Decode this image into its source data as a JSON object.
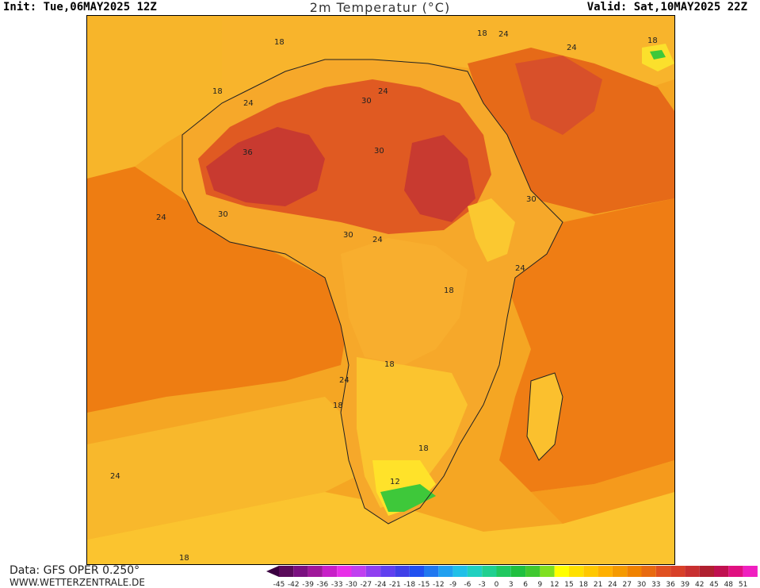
{
  "header": {
    "init": "Init: Tue,06MAY2025 12Z",
    "title": "2m Temperatur (°C)",
    "valid": "Valid: Sat,10MAY2025 22Z"
  },
  "map": {
    "contour_labels": [
      {
        "text": "18"
      },
      {
        "text": "18"
      },
      {
        "text": "24"
      },
      {
        "text": "24"
      },
      {
        "text": "18"
      },
      {
        "text": "18"
      },
      {
        "text": "24"
      },
      {
        "text": "24"
      },
      {
        "text": "30"
      },
      {
        "text": "30"
      },
      {
        "text": "36"
      },
      {
        "text": "24"
      },
      {
        "text": "30"
      },
      {
        "text": "30"
      },
      {
        "text": "24"
      },
      {
        "text": "30"
      },
      {
        "text": "24"
      },
      {
        "text": "18"
      },
      {
        "text": "18"
      },
      {
        "text": "24"
      },
      {
        "text": "18"
      },
      {
        "text": "18"
      },
      {
        "text": "12"
      },
      {
        "text": "24"
      },
      {
        "text": "18"
      }
    ]
  },
  "legend": {
    "ticks": [
      "-45",
      "-42",
      "-39",
      "-36",
      "-33",
      "-30",
      "-27",
      "-24",
      "-21",
      "-18",
      "-15",
      "-12",
      "-9",
      "-6",
      "-3",
      "0",
      "3",
      "6",
      "9",
      "12",
      "15",
      "18",
      "21",
      "24",
      "27",
      "30",
      "33",
      "36",
      "39",
      "42",
      "45",
      "48",
      "51"
    ],
    "colors": [
      "#5a0a5a",
      "#7a1080",
      "#a0189a",
      "#c820c8",
      "#e830e8",
      "#c040f0",
      "#9040f0",
      "#6040f0",
      "#4040e8",
      "#2050f0",
      "#2078f0",
      "#20a0f0",
      "#20c0e8",
      "#20d0c0",
      "#20d090",
      "#20c860",
      "#20c040",
      "#40c830",
      "#80e020",
      "#ffff00",
      "#ffe000",
      "#ffc800",
      "#ffb000",
      "#f59a00",
      "#f08200",
      "#e86a10",
      "#e05020",
      "#d84028",
      "#c83030",
      "#b02030",
      "#c01050",
      "#e01080",
      "#f020c0"
    ]
  },
  "footer": {
    "data": "Data: GFS OPER 0.250°",
    "site": "WWW.WETTERZENTRALE.DE"
  }
}
